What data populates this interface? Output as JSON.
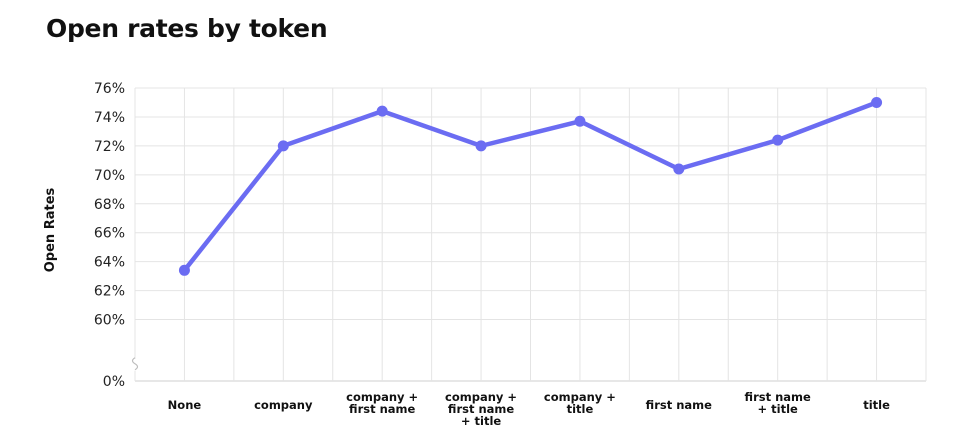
{
  "chart_data": {
    "type": "line",
    "title": "Open rates by token",
    "ylabel": "Open Rates",
    "xlabel": "",
    "categories": [
      "None",
      "company",
      "company + first name",
      "company + first name + title",
      "company + title",
      "first name",
      "first name + title",
      "title"
    ],
    "category_lines": [
      [
        "None"
      ],
      [
        "company"
      ],
      [
        "company +",
        "first name"
      ],
      [
        "company +",
        "first name",
        "+ title"
      ],
      [
        "company +",
        "title"
      ],
      [
        "first name"
      ],
      [
        "first name",
        "+ title"
      ],
      [
        "title"
      ]
    ],
    "series": [
      {
        "values": [
          63.4,
          72.0,
          74.4,
          72.0,
          73.7,
          70.4,
          72.4,
          75.0
        ]
      }
    ],
    "y_ticks": [
      0,
      60,
      62,
      64,
      66,
      68,
      70,
      72,
      74,
      76
    ],
    "y_tick_labels": [
      "0%",
      "60%",
      "62%",
      "64%",
      "66%",
      "68%",
      "70%",
      "72%",
      "74%",
      "76%"
    ],
    "ylim": [
      58,
      76
    ],
    "y_axis_break": true,
    "grid": true,
    "colors": {
      "line": "#6b6cf2",
      "grid": "#e4e4e4"
    }
  }
}
